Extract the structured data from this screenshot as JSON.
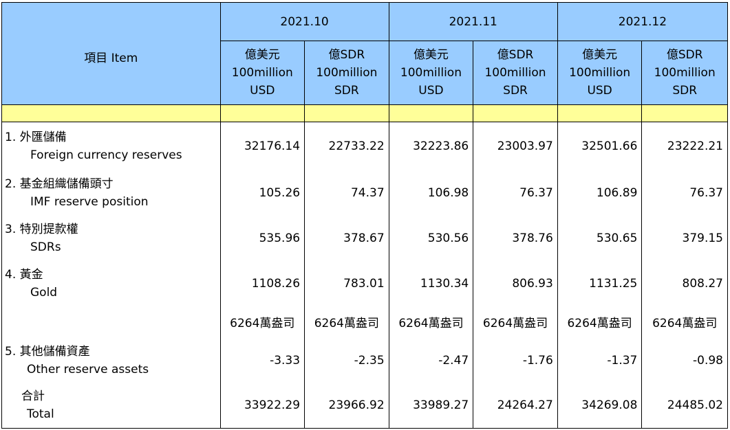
{
  "header": {
    "item_label": "項目  Item",
    "periods": [
      "2021.10",
      "2021.11",
      "2021.12"
    ],
    "units": [
      [
        "億美元",
        "100million",
        "USD"
      ],
      [
        "億SDR",
        "100million",
        "SDR"
      ]
    ]
  },
  "rows": [
    {
      "zh": "1.  外匯儲備",
      "en": "Foreign currency reserves",
      "values": [
        "32176.14",
        "22733.22",
        "32223.86",
        "23003.97",
        "32501.66",
        "23222.21"
      ]
    },
    {
      "zh": "2.  基金組織儲備頭寸",
      "en": "IMF reserve position",
      "values": [
        "105.26",
        "74.37",
        "106.98",
        "76.37",
        "106.89",
        "76.37"
      ]
    },
    {
      "zh": "3.  特別提款權",
      "en": "SDRs",
      "values": [
        "535.96",
        "378.67",
        "530.56",
        "378.76",
        "530.65",
        "379.15"
      ]
    },
    {
      "zh": "4.  黃金",
      "en": "Gold",
      "values": [
        "1108.26",
        "783.01",
        "1130.34",
        "806.93",
        "1131.25",
        "808.27"
      ]
    }
  ],
  "gold_units": [
    "6264萬盎司",
    "6264萬盎司",
    "6264萬盎司",
    "6264萬盎司",
    "6264萬盎司",
    "6264萬盎司"
  ],
  "other": {
    "zh": "5.  其他儲備資產",
    "en": "Other reserve assets",
    "values": [
      "-3.33",
      "-2.35",
      "-2.47",
      "-1.76",
      "-1.37",
      "-0.98"
    ]
  },
  "total": {
    "zh": "合計",
    "en": "Total",
    "values": [
      "33922.29",
      "23966.92",
      "33989.27",
      "24264.27",
      "34269.08",
      "24485.02"
    ]
  }
}
